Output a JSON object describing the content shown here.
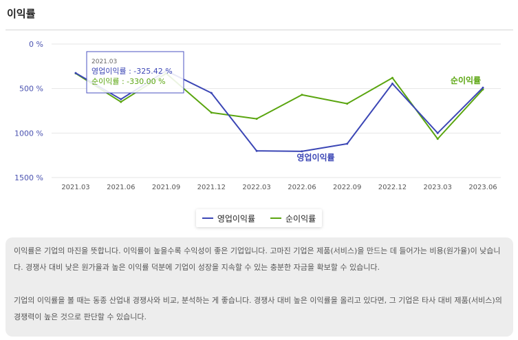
{
  "section_title": "이익률",
  "chart_data": {
    "type": "line",
    "categories": [
      "2021.03",
      "2021.06",
      "2021.09",
      "2021.12",
      "2022.03",
      "2022.06",
      "2022.09",
      "2022.12",
      "2023.03",
      "2023.06"
    ],
    "series": [
      {
        "name": "영업이익률",
        "color": "#3b46b5",
        "values": [
          -325.42,
          -620,
          -300,
          -550,
          -1200,
          -1205,
          -1120,
          -445,
          -1000,
          -490
        ]
      },
      {
        "name": "순이익률",
        "color": "#5aa50f",
        "values": [
          -330.0,
          -650,
          -330,
          -770,
          -840,
          -570,
          -670,
          -380,
          -1065,
          -510
        ]
      }
    ],
    "yticks": [
      0,
      500,
      1000,
      1500
    ],
    "ytick_labels": [
      "0 %",
      "500 %",
      "1000 %",
      "1500 %"
    ],
    "ylim": [
      0,
      -1500
    ],
    "end_labels": [
      "순이익률",
      "영업이익률"
    ],
    "tooltip": {
      "date": "2021.03",
      "line1": "영업이익률 : -325.42 %",
      "line2": "순이익률 : -330.00 %"
    }
  },
  "legend": [
    {
      "label": "영업이익률",
      "color": "#3b46b5"
    },
    {
      "label": "순이익률",
      "color": "#5aa50f"
    }
  ],
  "description": [
    "이익률은 기업의 마진을 뜻합니다. 이익률이 높을수록 수익성이 좋은 기업입니다. 고마진 기업은 제품(서비스)을 만드는 데 들어가는 비용(원가율)이 낮습니다. 경쟁사 대비 낮은 원가율과 높은 이익률 덕분에 기업이 성장을 지속할 수 있는 충분한 자금을 확보할 수 있습니다.",
    "기업의 이익률을 볼 때는 동종 산업내 경쟁사와 비교, 분석하는 게 좋습니다. 경쟁사 대비 높은 이익률을 올리고 있다면, 그 기업은 타사 대비 제품(서비스)의 경쟁력이 높은 것으로 판단할 수 있습니다."
  ]
}
